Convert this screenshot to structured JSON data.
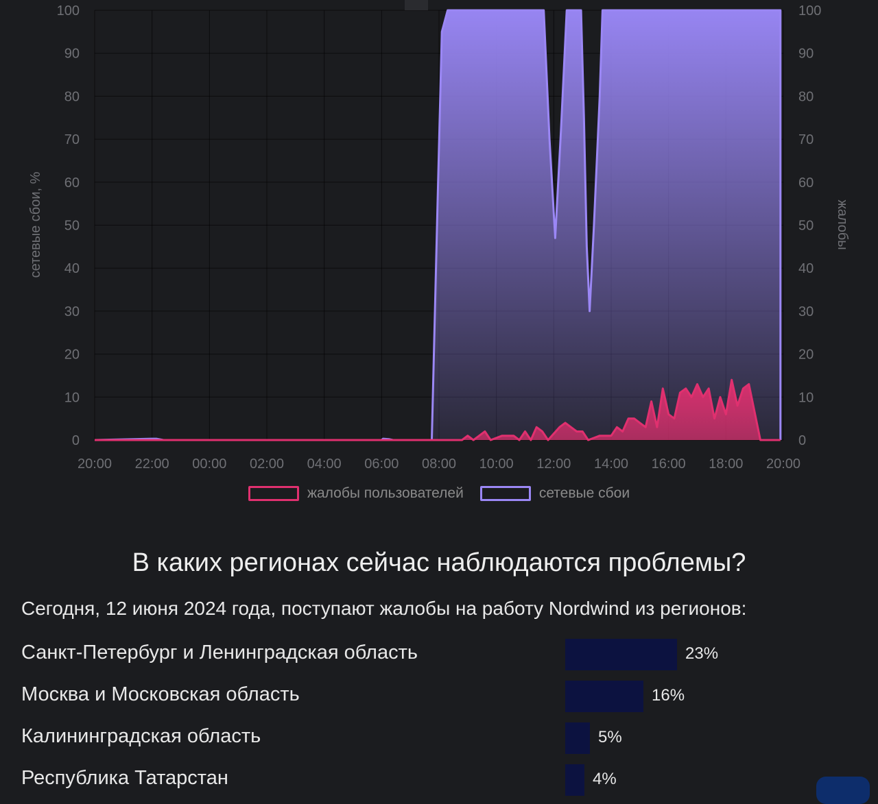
{
  "chart_data": {
    "type": "area",
    "x_ticks": [
      "20:00",
      "22:00",
      "00:00",
      "02:00",
      "04:00",
      "06:00",
      "08:00",
      "10:00",
      "12:00",
      "14:00",
      "16:00",
      "18:00",
      "20:00"
    ],
    "y_ticks": [
      0,
      10,
      20,
      30,
      40,
      50,
      60,
      70,
      80,
      90,
      100
    ],
    "ylim": [
      0,
      100
    ],
    "ylabel_left": "сетевые сбои, %",
    "ylabel_right": "жалобы",
    "grid": true,
    "legend_position": "bottom",
    "series": [
      {
        "name": "сетевые сбои",
        "color": "#9b87f5",
        "points": [
          [
            0,
            0
          ],
          [
            2,
            0.3
          ],
          [
            2.15,
            0.3
          ],
          [
            2.4,
            0
          ],
          [
            10,
            0
          ],
          [
            10.05,
            0.3
          ],
          [
            10.25,
            0.2
          ],
          [
            10.4,
            0
          ],
          [
            11.75,
            0
          ],
          [
            11.95,
            55
          ],
          [
            12.1,
            95
          ],
          [
            12.3,
            100
          ],
          [
            15.65,
            100
          ],
          [
            15.85,
            70
          ],
          [
            16.05,
            47
          ],
          [
            16.25,
            72
          ],
          [
            16.45,
            100
          ],
          [
            16.95,
            100
          ],
          [
            17.05,
            75
          ],
          [
            17.15,
            45
          ],
          [
            17.25,
            30
          ],
          [
            17.4,
            50
          ],
          [
            17.6,
            80
          ],
          [
            17.7,
            100
          ],
          [
            23.9,
            100
          ],
          [
            23.9,
            0
          ]
        ]
      },
      {
        "name": "жалобы пользователей",
        "color": "#e0306f",
        "points": [
          [
            0,
            0
          ],
          [
            12.8,
            0
          ],
          [
            13,
            1
          ],
          [
            13.2,
            0
          ],
          [
            13.4,
            1
          ],
          [
            13.6,
            2
          ],
          [
            13.8,
            0
          ],
          [
            14.2,
            1
          ],
          [
            14.6,
            1
          ],
          [
            14.8,
            0
          ],
          [
            15,
            2
          ],
          [
            15.2,
            0
          ],
          [
            15.4,
            3
          ],
          [
            15.6,
            2
          ],
          [
            15.8,
            0
          ],
          [
            16.2,
            3
          ],
          [
            16.4,
            4
          ],
          [
            16.6,
            3
          ],
          [
            16.8,
            2
          ],
          [
            17,
            2
          ],
          [
            17.2,
            0
          ],
          [
            17.6,
            1
          ],
          [
            18,
            1
          ],
          [
            18.2,
            3
          ],
          [
            18.4,
            2
          ],
          [
            18.6,
            5
          ],
          [
            18.8,
            5
          ],
          [
            19,
            4
          ],
          [
            19.2,
            3
          ],
          [
            19.4,
            9
          ],
          [
            19.6,
            3
          ],
          [
            19.8,
            12
          ],
          [
            20,
            6
          ],
          [
            20.2,
            5
          ],
          [
            20.4,
            11
          ],
          [
            20.6,
            12
          ],
          [
            20.8,
            10
          ],
          [
            21,
            13
          ],
          [
            21.2,
            10
          ],
          [
            21.4,
            12
          ],
          [
            21.6,
            5
          ],
          [
            21.8,
            10
          ],
          [
            22,
            6
          ],
          [
            22.2,
            14
          ],
          [
            22.4,
            8
          ],
          [
            22.6,
            12
          ],
          [
            22.8,
            13
          ],
          [
            23.2,
            0
          ],
          [
            23.9,
            0
          ]
        ]
      }
    ]
  },
  "regions": {
    "title": "В каких регионах сейчас наблюдаются проблемы?",
    "subtitle": "Сегодня, 12 июня 2024 года, поступают жалобы на работу Nordwind из регионов:",
    "items": [
      {
        "name": "Санкт-Петербург и Ленинградская область",
        "percent": 23,
        "label": "23%"
      },
      {
        "name": "Москва и Московская область",
        "percent": 16,
        "label": "16%"
      },
      {
        "name": "Калининградская область",
        "percent": 5,
        "label": "5%"
      },
      {
        "name": "Республика Татарстан",
        "percent": 4,
        "label": "4%"
      }
    ]
  }
}
